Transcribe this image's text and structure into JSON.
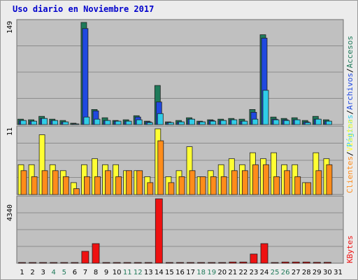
{
  "chart_data": [
    {
      "type": "bar",
      "title": "Uso diario en Noviembre 2017",
      "ylabel_max": "149",
      "ylim": [
        0,
        149
      ],
      "categories": [
        "1",
        "2",
        "3",
        "4",
        "5",
        "6",
        "7",
        "8",
        "9",
        "10",
        "11",
        "12",
        "13",
        "14",
        "15",
        "16",
        "17",
        "18",
        "19",
        "20",
        "21",
        "22",
        "23",
        "24",
        "25",
        "26",
        "27",
        "28",
        "29",
        "30",
        "31"
      ],
      "weekend_days": [
        "4",
        "5",
        "11",
        "12",
        "18",
        "19",
        "25",
        "26"
      ],
      "legend": [
        "Accesos",
        "Archivos",
        "Páginas"
      ],
      "legend_separator": "/",
      "series": [
        {
          "name": "Accesos",
          "color": "#1f7a5a",
          "values": [
            8,
            7,
            12,
            8,
            6,
            2,
            149,
            22,
            10,
            6,
            7,
            13,
            5,
            57,
            4,
            6,
            10,
            5,
            7,
            8,
            9,
            8,
            22,
            131,
            11,
            9,
            10,
            6,
            12,
            7,
            0
          ]
        },
        {
          "name": "Archivos",
          "color": "#1f49e0",
          "values": [
            6,
            5,
            9,
            6,
            4,
            1,
            140,
            20,
            6,
            5,
            5,
            11,
            4,
            33,
            3,
            4,
            8,
            4,
            6,
            6,
            7,
            5,
            18,
            126,
            8,
            7,
            7,
            4,
            8,
            5,
            0
          ]
        },
        {
          "name": "Páginas",
          "color": "#30cde8",
          "values": [
            6,
            5,
            9,
            6,
            4,
            1,
            11,
            8,
            6,
            5,
            5,
            7,
            3,
            16,
            3,
            4,
            8,
            4,
            5,
            6,
            7,
            5,
            8,
            50,
            7,
            6,
            7,
            3,
            8,
            5,
            0
          ]
        }
      ]
    },
    {
      "type": "bar",
      "ylabel_max": "11",
      "ylim": [
        0,
        11
      ],
      "categories": [
        "1",
        "2",
        "3",
        "4",
        "5",
        "6",
        "7",
        "8",
        "9",
        "10",
        "11",
        "12",
        "13",
        "14",
        "15",
        "16",
        "17",
        "18",
        "19",
        "20",
        "21",
        "22",
        "23",
        "24",
        "25",
        "26",
        "27",
        "28",
        "29",
        "30",
        "31"
      ],
      "legend": [
        "Clientes",
        "Visitas"
      ],
      "legend_separator": "/",
      "series": [
        {
          "name": "Visitas",
          "color": "#ffff33",
          "values": [
            5,
            5,
            10,
            5,
            4,
            2,
            5,
            6,
            5,
            5,
            4,
            4,
            3,
            11,
            3,
            4,
            8,
            3,
            4,
            5,
            6,
            5,
            7,
            6,
            7,
            5,
            5,
            2,
            7,
            6,
            0
          ]
        },
        {
          "name": "Clientes",
          "color": "#ff8c1a",
          "values": [
            4,
            3,
            4,
            4,
            3,
            1,
            3,
            3,
            4,
            3,
            4,
            4,
            2,
            9,
            2,
            3,
            4,
            3,
            3,
            3,
            4,
            4,
            5,
            5,
            3,
            4,
            3,
            2,
            4,
            5,
            0
          ]
        }
      ]
    },
    {
      "type": "bar",
      "ylabel_max": "4340",
      "ylim": [
        0,
        4340
      ],
      "categories": [
        "1",
        "2",
        "3",
        "4",
        "5",
        "6",
        "7",
        "8",
        "9",
        "10",
        "11",
        "12",
        "13",
        "14",
        "15",
        "16",
        "17",
        "18",
        "19",
        "20",
        "21",
        "22",
        "23",
        "24",
        "25",
        "26",
        "27",
        "28",
        "29",
        "30",
        "31"
      ],
      "legend": [
        "KBytes"
      ],
      "series": [
        {
          "name": "KBytes",
          "color": "#ee1111",
          "values": [
            10,
            10,
            10,
            10,
            10,
            10,
            800,
            1320,
            10,
            10,
            10,
            10,
            10,
            4340,
            10,
            10,
            10,
            10,
            10,
            10,
            80,
            80,
            620,
            1320,
            10,
            80,
            80,
            80,
            60,
            60,
            0
          ]
        }
      ]
    }
  ],
  "colors": {
    "weekday_label": "#000000",
    "weekend_label": "#1f7a5a",
    "plot_bg": "#c0c0c0",
    "gridline": "#8c8c8c"
  }
}
